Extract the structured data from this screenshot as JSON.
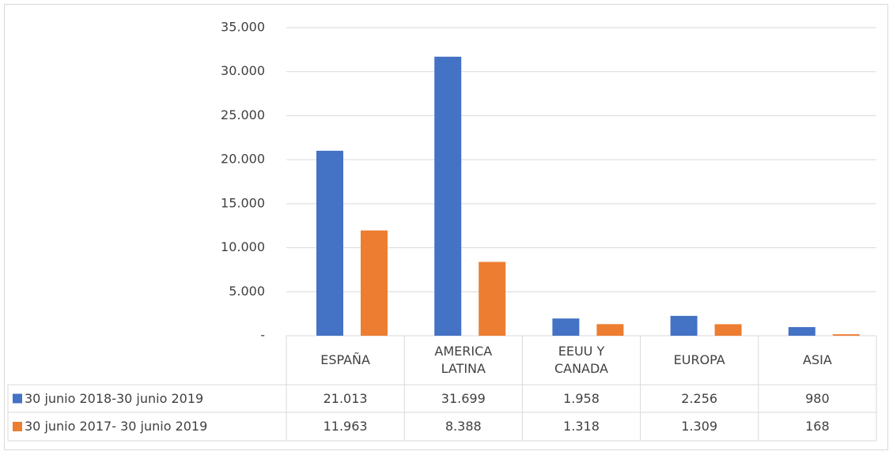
{
  "chart_data": {
    "type": "bar",
    "categories": [
      "ESPAÑA",
      "AMERICA\nLATINA",
      "EEUU Y\nCANADA",
      "EUROPA",
      "ASIA"
    ],
    "series": [
      {
        "name": "30 junio 2018-30 junio 2019",
        "color": "#4472c4",
        "values": [
          21013,
          31699,
          1958,
          2256,
          980
        ],
        "value_labels": [
          "21.013",
          "31.699",
          "1.958",
          "2.256",
          "980"
        ]
      },
      {
        "name": "30 junio 2017- 30 junio 2019",
        "color": "#ed7d31",
        "values": [
          11963,
          8388,
          1318,
          1309,
          168
        ],
        "value_labels": [
          "11.963",
          "8.388",
          "1.318",
          "1.309",
          "168"
        ]
      }
    ],
    "ylim": [
      0,
      35000
    ],
    "yticks": [
      {
        "value": 0,
        "label": "-"
      },
      {
        "value": 5000,
        "label": "5.000"
      },
      {
        "value": 10000,
        "label": "10.000"
      },
      {
        "value": 15000,
        "label": "15.000"
      },
      {
        "value": 20000,
        "label": "20.000"
      },
      {
        "value": 25000,
        "label": "25.000"
      },
      {
        "value": 30000,
        "label": "30.000"
      },
      {
        "value": 35000,
        "label": "35.000"
      }
    ],
    "grid": true
  }
}
